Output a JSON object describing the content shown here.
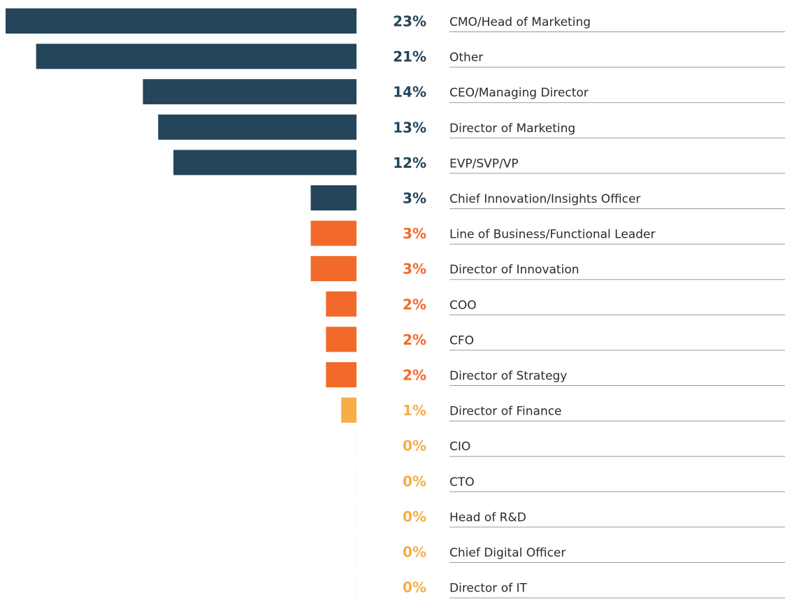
{
  "chart_data": {
    "type": "bar",
    "orientation": "horizontal",
    "categories": [
      "CMO/Head of Marketing",
      "Other",
      "CEO/Managing Director",
      "Director of Marketing",
      "EVP/SVP/VP",
      "Chief Innovation/Insights Officer",
      "Line of Business/Functional Leader",
      "Director of Innovation",
      "COO",
      "CFO",
      "Director of Strategy",
      "Director of Finance",
      "CIO",
      "CTO",
      "Head of R&D",
      "Chief Digital Officer",
      "Director of IT"
    ],
    "values": [
      23,
      21,
      14,
      13,
      12,
      3,
      3,
      3,
      2,
      2,
      2,
      1,
      0,
      0,
      0,
      0,
      0
    ],
    "value_labels": [
      "23%",
      "21%",
      "14%",
      "13%",
      "12%",
      "3%",
      "3%",
      "3%",
      "2%",
      "2%",
      "2%",
      "1%",
      "0%",
      "0%",
      "0%",
      "0%",
      "0%"
    ],
    "colors": [
      "#24455a",
      "#24455a",
      "#24455a",
      "#24455a",
      "#24455a",
      "#24455a",
      "#f26a2a",
      "#f26a2a",
      "#f26a2a",
      "#f26a2a",
      "#f26a2a",
      "#f6ae45",
      "#f6ae45",
      "#f6ae45",
      "#f6ae45",
      "#f6ae45",
      "#f6ae45"
    ]
  }
}
